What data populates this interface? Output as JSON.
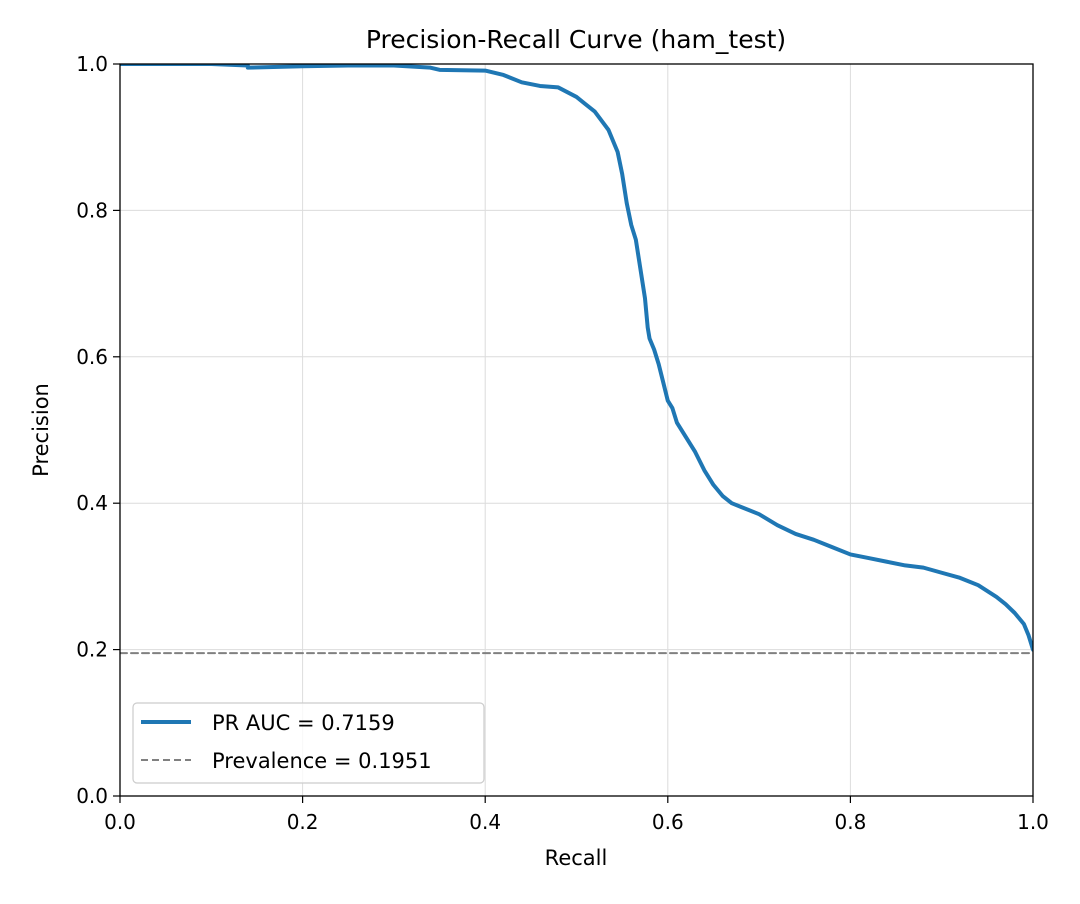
{
  "chart_data": {
    "type": "line",
    "title": "Precision-Recall Curve (ham_test)",
    "xlabel": "Recall",
    "ylabel": "Precision",
    "xlim": [
      0.0,
      1.0
    ],
    "ylim": [
      0.0,
      1.0
    ],
    "xticks": [
      "0.0",
      "0.2",
      "0.4",
      "0.6",
      "0.8",
      "1.0"
    ],
    "yticks": [
      "0.0",
      "0.2",
      "0.4",
      "0.6",
      "0.8",
      "1.0"
    ],
    "grid": true,
    "legend_position": "lower-left",
    "series": [
      {
        "name": "PR AUC = 0.7159",
        "color": "#1f77b4",
        "style": "solid",
        "x": [
          0.0,
          0.1,
          0.14,
          0.14,
          0.2,
          0.25,
          0.3,
          0.34,
          0.35,
          0.4,
          0.42,
          0.44,
          0.46,
          0.48,
          0.5,
          0.51,
          0.52,
          0.535,
          0.545,
          0.55,
          0.555,
          0.56,
          0.565,
          0.57,
          0.575,
          0.578,
          0.58,
          0.585,
          0.59,
          0.595,
          0.6,
          0.605,
          0.61,
          0.62,
          0.63,
          0.64,
          0.65,
          0.66,
          0.67,
          0.68,
          0.7,
          0.72,
          0.74,
          0.76,
          0.78,
          0.8,
          0.82,
          0.84,
          0.86,
          0.88,
          0.9,
          0.92,
          0.94,
          0.96,
          0.97,
          0.98,
          0.99,
          0.995,
          1.0
        ],
        "y": [
          1.0,
          1.0,
          0.998,
          0.995,
          0.997,
          0.998,
          0.998,
          0.995,
          0.992,
          0.991,
          0.985,
          0.975,
          0.97,
          0.968,
          0.955,
          0.945,
          0.935,
          0.91,
          0.88,
          0.85,
          0.81,
          0.78,
          0.76,
          0.72,
          0.68,
          0.64,
          0.625,
          0.61,
          0.59,
          0.565,
          0.54,
          0.53,
          0.51,
          0.49,
          0.47,
          0.445,
          0.425,
          0.41,
          0.4,
          0.395,
          0.385,
          0.37,
          0.358,
          0.35,
          0.34,
          0.33,
          0.325,
          0.32,
          0.315,
          0.312,
          0.305,
          0.298,
          0.288,
          0.272,
          0.262,
          0.25,
          0.235,
          0.22,
          0.2
        ]
      },
      {
        "name": "Prevalence = 0.1951",
        "color": "#808080",
        "style": "dashed",
        "x": [
          0.0,
          1.0
        ],
        "y": [
          0.1951,
          0.1951
        ]
      }
    ]
  }
}
